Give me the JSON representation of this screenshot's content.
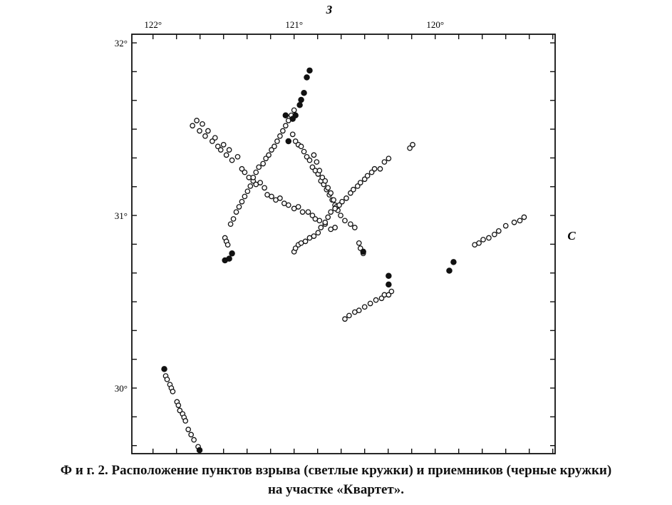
{
  "chart_data": {
    "type": "scatter",
    "x_axis": {
      "reversed": true,
      "xlim": [
        122.15,
        119.15
      ],
      "ticks": [
        {
          "value": 122,
          "label": "122°"
        },
        {
          "value": 121,
          "label": "121°"
        },
        {
          "value": 120,
          "label": "120°"
        }
      ],
      "label": "З"
    },
    "y_axis": {
      "ylim": [
        29.62,
        32.05
      ],
      "ticks": [
        {
          "value": 32,
          "label": "32°"
        },
        {
          "value": 31,
          "label": "31°"
        },
        {
          "value": 30,
          "label": "30°"
        }
      ],
      "label": "С"
    },
    "grid": false,
    "series": [
      {
        "marker": "open",
        "points": [
          [
            121.72,
            31.52
          ],
          [
            121.69,
            31.55
          ],
          [
            121.67,
            31.49
          ],
          [
            121.65,
            31.53
          ],
          [
            121.63,
            31.46
          ],
          [
            121.61,
            31.49
          ],
          [
            121.58,
            31.43
          ],
          [
            121.56,
            31.45
          ],
          [
            121.54,
            31.4
          ],
          [
            121.52,
            31.38
          ],
          [
            121.5,
            31.41
          ],
          [
            121.48,
            31.35
          ],
          [
            121.46,
            31.38
          ],
          [
            121.44,
            31.32
          ],
          [
            121.4,
            31.34
          ],
          [
            121.37,
            31.27
          ],
          [
            121.35,
            31.25
          ],
          [
            121.32,
            31.22
          ],
          [
            121.29,
            31.2
          ],
          [
            121.27,
            31.18
          ],
          [
            121.24,
            31.19
          ],
          [
            121.21,
            31.16
          ],
          [
            121.19,
            31.12
          ],
          [
            121.16,
            31.11
          ],
          [
            121.13,
            31.09
          ],
          [
            121.1,
            31.1
          ],
          [
            121.07,
            31.07
          ],
          [
            121.04,
            31.06
          ],
          [
            121.0,
            31.04
          ],
          [
            120.97,
            31.05
          ],
          [
            120.94,
            31.02
          ],
          [
            120.9,
            31.02
          ],
          [
            120.87,
            31.0
          ],
          [
            120.85,
            30.98
          ],
          [
            120.82,
            30.97
          ],
          [
            120.78,
            30.95
          ],
          [
            120.74,
            30.92
          ],
          [
            120.71,
            30.93
          ],
          [
            121.49,
            30.87
          ],
          [
            121.48,
            30.85
          ],
          [
            121.47,
            30.83
          ],
          [
            121.45,
            30.95
          ],
          [
            121.43,
            30.98
          ],
          [
            121.41,
            31.02
          ],
          [
            121.39,
            31.05
          ],
          [
            121.37,
            31.08
          ],
          [
            121.35,
            31.11
          ],
          [
            121.33,
            31.14
          ],
          [
            121.31,
            31.17
          ],
          [
            121.29,
            31.22
          ],
          [
            121.27,
            31.25
          ],
          [
            121.25,
            31.28
          ],
          [
            121.22,
            31.3
          ],
          [
            121.2,
            31.33
          ],
          [
            121.18,
            31.35
          ],
          [
            121.16,
            31.38
          ],
          [
            121.14,
            31.4
          ],
          [
            121.12,
            31.43
          ],
          [
            121.1,
            31.46
          ],
          [
            121.08,
            31.49
          ],
          [
            121.06,
            31.52
          ],
          [
            121.04,
            31.55
          ],
          [
            121.02,
            31.58
          ],
          [
            121.0,
            31.61
          ],
          [
            121.01,
            31.47
          ],
          [
            120.99,
            31.43
          ],
          [
            120.97,
            31.41
          ],
          [
            120.95,
            31.4
          ],
          [
            120.93,
            31.37
          ],
          [
            120.91,
            31.34
          ],
          [
            120.89,
            31.32
          ],
          [
            120.87,
            31.28
          ],
          [
            120.85,
            31.26
          ],
          [
            120.83,
            31.24
          ],
          [
            120.81,
            31.2
          ],
          [
            120.79,
            31.18
          ],
          [
            120.77,
            31.15
          ],
          [
            120.75,
            31.12
          ],
          [
            120.73,
            31.09
          ],
          [
            120.71,
            31.06
          ],
          [
            120.69,
            31.03
          ],
          [
            120.67,
            31.0
          ],
          [
            120.64,
            30.97
          ],
          [
            120.6,
            30.95
          ],
          [
            120.57,
            30.93
          ],
          [
            120.54,
            30.84
          ],
          [
            120.53,
            30.81
          ],
          [
            120.51,
            30.78
          ],
          [
            120.86,
            31.35
          ],
          [
            120.84,
            31.31
          ],
          [
            120.82,
            31.26
          ],
          [
            120.8,
            31.22
          ],
          [
            120.78,
            31.2
          ],
          [
            120.76,
            31.16
          ],
          [
            120.74,
            31.13
          ],
          [
            120.72,
            31.09
          ],
          [
            120.7,
            31.05
          ],
          [
            121.0,
            30.79
          ],
          [
            120.99,
            30.81
          ],
          [
            120.97,
            30.83
          ],
          [
            120.95,
            30.84
          ],
          [
            120.92,
            30.85
          ],
          [
            120.89,
            30.87
          ],
          [
            120.86,
            30.88
          ],
          [
            120.83,
            30.9
          ],
          [
            120.81,
            30.93
          ],
          [
            120.78,
            30.96
          ],
          [
            120.76,
            30.99
          ],
          [
            120.74,
            31.02
          ],
          [
            120.71,
            31.04
          ],
          [
            120.68,
            31.06
          ],
          [
            120.66,
            31.08
          ],
          [
            120.63,
            31.1
          ],
          [
            120.6,
            31.13
          ],
          [
            120.58,
            31.15
          ],
          [
            120.55,
            31.17
          ],
          [
            120.53,
            31.19
          ],
          [
            120.5,
            31.21
          ],
          [
            120.48,
            31.23
          ],
          [
            120.45,
            31.25
          ],
          [
            120.43,
            31.27
          ],
          [
            120.39,
            31.27
          ],
          [
            120.36,
            31.31
          ],
          [
            120.33,
            31.33
          ],
          [
            120.18,
            31.39
          ],
          [
            120.16,
            31.41
          ],
          [
            120.64,
            30.4
          ],
          [
            120.61,
            30.42
          ],
          [
            120.57,
            30.44
          ],
          [
            120.54,
            30.45
          ],
          [
            120.5,
            30.47
          ],
          [
            120.46,
            30.49
          ],
          [
            120.42,
            30.51
          ],
          [
            120.38,
            30.52
          ],
          [
            120.36,
            30.54
          ],
          [
            120.33,
            30.54
          ],
          [
            120.31,
            30.56
          ],
          [
            119.72,
            30.83
          ],
          [
            119.69,
            30.84
          ],
          [
            119.66,
            30.86
          ],
          [
            119.62,
            30.87
          ],
          [
            119.58,
            30.89
          ],
          [
            119.55,
            30.91
          ],
          [
            119.5,
            30.94
          ],
          [
            119.44,
            30.96
          ],
          [
            119.4,
            30.97
          ],
          [
            119.37,
            30.99
          ],
          [
            121.91,
            30.07
          ],
          [
            121.9,
            30.05
          ],
          [
            121.88,
            30.02
          ],
          [
            121.87,
            30.0
          ],
          [
            121.86,
            29.98
          ],
          [
            121.83,
            29.92
          ],
          [
            121.82,
            29.9
          ],
          [
            121.81,
            29.87
          ],
          [
            121.79,
            29.85
          ],
          [
            121.78,
            29.83
          ],
          [
            121.77,
            29.81
          ],
          [
            121.75,
            29.76
          ],
          [
            121.73,
            29.73
          ],
          [
            121.71,
            29.7
          ],
          [
            121.68,
            29.66
          ]
        ]
      },
      {
        "marker": "filled",
        "points": [
          [
            121.49,
            30.74
          ],
          [
            121.46,
            30.75
          ],
          [
            121.44,
            30.78
          ],
          [
            120.89,
            31.84
          ],
          [
            120.91,
            31.8
          ],
          [
            120.93,
            31.71
          ],
          [
            120.95,
            31.67
          ],
          [
            120.96,
            31.64
          ],
          [
            121.04,
            31.43
          ],
          [
            121.06,
            31.58
          ],
          [
            121.01,
            31.56
          ],
          [
            120.99,
            31.58
          ],
          [
            120.51,
            30.79
          ],
          [
            120.33,
            30.65
          ],
          [
            120.33,
            30.6
          ],
          [
            119.87,
            30.73
          ],
          [
            119.9,
            30.68
          ],
          [
            121.92,
            30.11
          ],
          [
            121.67,
            29.64
          ]
        ]
      }
    ]
  },
  "caption": {
    "line1": "Ф и г.  2.  Расположение пунктов взрыва (светлые кружки) и приемников (черные кружки)",
    "line2": "на  участке  «Квартет»."
  }
}
